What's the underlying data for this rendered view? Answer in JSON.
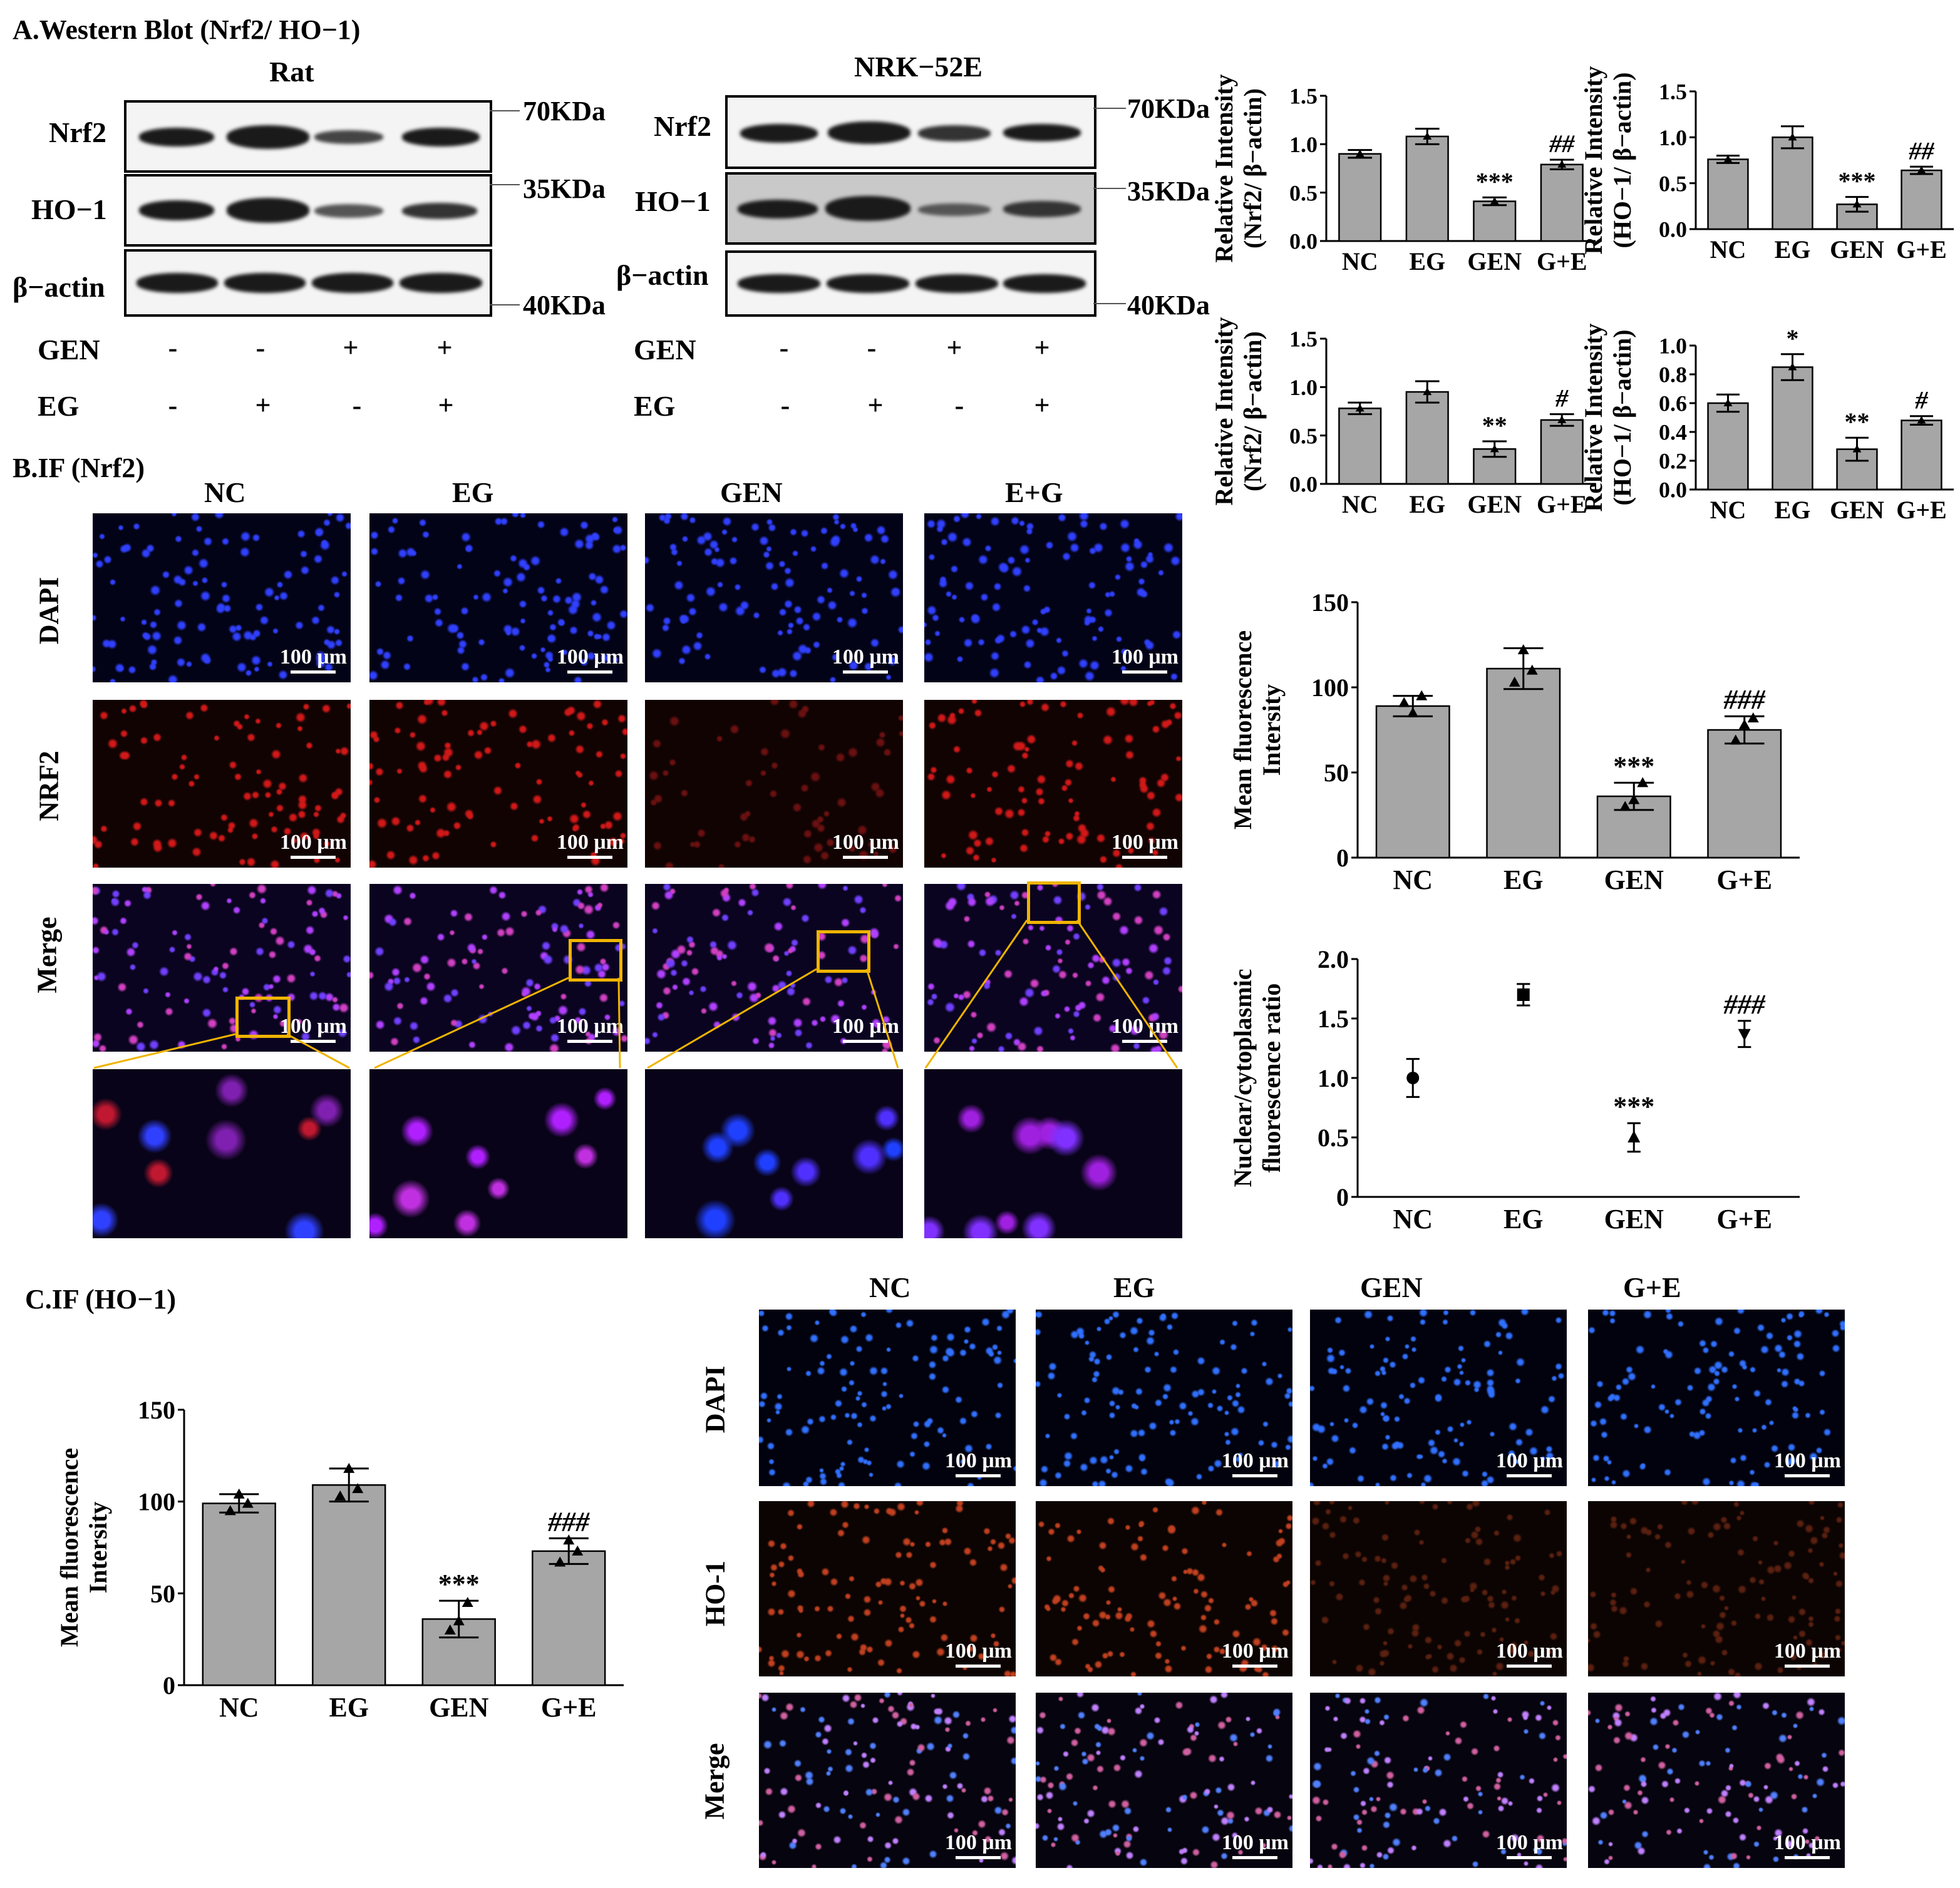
{
  "sections": {
    "a": "A.Western Blot (Nrf2/ HO−1)",
    "b": "B.IF (Nrf2)",
    "c": "C.IF (HO−1)"
  },
  "western": {
    "rat": {
      "title": "Rat",
      "rows": [
        "Nrf2",
        "HO−1",
        "β−actin"
      ],
      "markers": [
        "70KDa",
        "35KDa",
        "40KDa"
      ],
      "gen": [
        "-",
        "-",
        "+",
        "+"
      ],
      "eg": [
        "-",
        "+",
        "-",
        "+"
      ],
      "gen_label": "GEN",
      "eg_label": "EG"
    },
    "nrk": {
      "title": "NRK−52E",
      "rows": [
        "Nrf2",
        "HO−1",
        "β−actin"
      ],
      "markers": [
        "70KDa",
        "35KDa",
        "40KDa"
      ],
      "gen": [
        "-",
        "-",
        "+",
        "+"
      ],
      "eg": [
        "-",
        "+",
        "-",
        "+"
      ],
      "gen_label": "GEN",
      "eg_label": "EG"
    }
  },
  "if_nrf2": {
    "columns": [
      "NC",
      "EG",
      "GEN",
      "E+G"
    ],
    "rows": [
      "DAPI",
      "NRF2",
      "Merge"
    ],
    "scale_label": "100 μm"
  },
  "if_ho1": {
    "columns": [
      "NC",
      "EG",
      "GEN",
      "G+E"
    ],
    "rows": [
      "DAPI",
      "HO-1",
      "Merge"
    ],
    "scale_label": "100 μm"
  },
  "chart_data": [
    {
      "id": "wb-rat-nrf2",
      "type": "bar",
      "categories": [
        "NC",
        "EG",
        "GEN",
        "G+E"
      ],
      "values": [
        0.9,
        1.08,
        0.41,
        0.79
      ],
      "errors": [
        0.04,
        0.08,
        0.04,
        0.05
      ],
      "annotations": [
        "",
        "",
        "***",
        "##"
      ],
      "ylabel": "Relative Intensity\n(Nrf2/ β−actin)",
      "ylim": [
        0,
        1.5
      ],
      "yticks": [
        "0.0",
        "0.5",
        "1.0",
        "1.5"
      ]
    },
    {
      "id": "wb-rat-ho1",
      "type": "bar",
      "categories": [
        "NC",
        "EG",
        "GEN",
        "G+E"
      ],
      "values": [
        0.76,
        1.0,
        0.27,
        0.64
      ],
      "errors": [
        0.04,
        0.12,
        0.08,
        0.04
      ],
      "annotations": [
        "",
        "",
        "***",
        "##"
      ],
      "ylabel": "Relative Intensity\n(HO−1/ β−actin)",
      "ylim": [
        0,
        1.5
      ],
      "yticks": [
        "0.0",
        "0.5",
        "1.0",
        "1.5"
      ]
    },
    {
      "id": "wb-nrk-nrf2",
      "type": "bar",
      "categories": [
        "NC",
        "EG",
        "GEN",
        "G+E"
      ],
      "values": [
        0.78,
        0.95,
        0.36,
        0.66
      ],
      "errors": [
        0.06,
        0.11,
        0.08,
        0.06
      ],
      "annotations": [
        "",
        "",
        "**",
        "#"
      ],
      "ylabel": "Relative Intensity\n(Nrf2/ β−actin)",
      "ylim": [
        0,
        1.5
      ],
      "yticks": [
        "0.0",
        "0.5",
        "1.0",
        "1.5"
      ]
    },
    {
      "id": "wb-nrk-ho1",
      "type": "bar",
      "categories": [
        "NC",
        "EG",
        "GEN",
        "G+E"
      ],
      "values": [
        0.6,
        0.85,
        0.28,
        0.48
      ],
      "errors": [
        0.06,
        0.09,
        0.08,
        0.03
      ],
      "annotations": [
        "",
        "*",
        "**",
        "#"
      ],
      "ylabel": "Relative Intensity\n(HO−1/ β−actin)",
      "ylim": [
        0,
        1.0
      ],
      "yticks": [
        "0.0",
        "0.2",
        "0.4",
        "0.6",
        "0.8",
        "1.0"
      ]
    },
    {
      "id": "if-nrf2-mean",
      "type": "bar",
      "categories": [
        "NC",
        "EG",
        "GEN",
        "G+E"
      ],
      "values": [
        89,
        111,
        36,
        75
      ],
      "errors": [
        6,
        12,
        8,
        8
      ],
      "points": [
        [
          91,
          85,
          95
        ],
        [
          103,
          122,
          110
        ],
        [
          30,
          34,
          44
        ],
        [
          69,
          78,
          82
        ]
      ],
      "annotations": [
        "",
        "",
        "***",
        "###"
      ],
      "ylabel": "Mean fluorescence\nIntersity",
      "ylim": [
        0,
        150
      ],
      "yticks": [
        "0",
        "50",
        "100",
        "150"
      ]
    },
    {
      "id": "if-nrf2-ratio",
      "type": "scatter",
      "categories": [
        "NC",
        "EG",
        "GEN",
        "G+E"
      ],
      "values": [
        1.0,
        1.7,
        0.5,
        1.37
      ],
      "errors": [
        0.16,
        0.09,
        0.12,
        0.11
      ],
      "annotations": [
        "",
        "",
        "***",
        "###"
      ],
      "ylabel": "Nuclear/cytoplasmic\nfluorescence ratio",
      "ylim": [
        0,
        2.0
      ],
      "yticks": [
        "0",
        "0.5",
        "1.0",
        "1.5",
        "2.0"
      ]
    },
    {
      "id": "if-ho1-mean",
      "type": "bar",
      "categories": [
        "NC",
        "EG",
        "GEN",
        "G+E"
      ],
      "values": [
        99,
        109,
        36,
        73
      ],
      "errors": [
        5,
        9,
        10,
        7
      ],
      "points": [
        [
          95,
          104,
          99
        ],
        [
          103,
          118,
          107
        ],
        [
          30,
          35,
          45
        ],
        [
          67,
          79,
          73
        ]
      ],
      "annotations": [
        "",
        "",
        "***",
        "###"
      ],
      "ylabel": "Mean fluorescence\nIntersity",
      "ylim": [
        0,
        150
      ],
      "yticks": [
        "0",
        "50",
        "100",
        "150"
      ]
    }
  ]
}
